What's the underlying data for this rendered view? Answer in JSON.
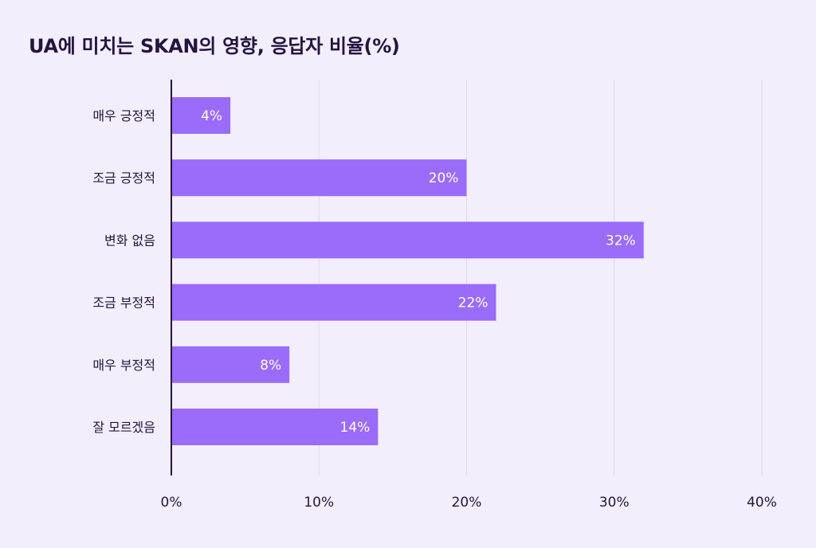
{
  "chart_data": {
    "type": "bar",
    "orientation": "horizontal",
    "title": "UA에 미치는 SKAN의 영향, 응답자 비율(%)",
    "categories": [
      "매우 긍정적",
      "조금 긍정적",
      "변화 없음",
      "조금 부정적",
      "매우 부정적",
      "잘 모르겠음"
    ],
    "values": [
      4,
      20,
      32,
      22,
      8,
      14
    ],
    "data_labels": [
      "4%",
      "20%",
      "32%",
      "22%",
      "8%",
      "14%"
    ],
    "xlabel": "",
    "ylabel": "",
    "xlim": [
      0,
      40
    ],
    "x_ticks": [
      0,
      10,
      20,
      30,
      40
    ],
    "x_tick_labels": [
      "0%",
      "10%",
      "20%",
      "30%",
      "40%"
    ],
    "grid": true,
    "legend": "none",
    "colors": {
      "bar": "#9a6cf9",
      "axis": "#24143f",
      "grid": "#e2dcea",
      "background": "#f2eefb",
      "text": "#24143f",
      "data_label": "#ffffff"
    }
  }
}
